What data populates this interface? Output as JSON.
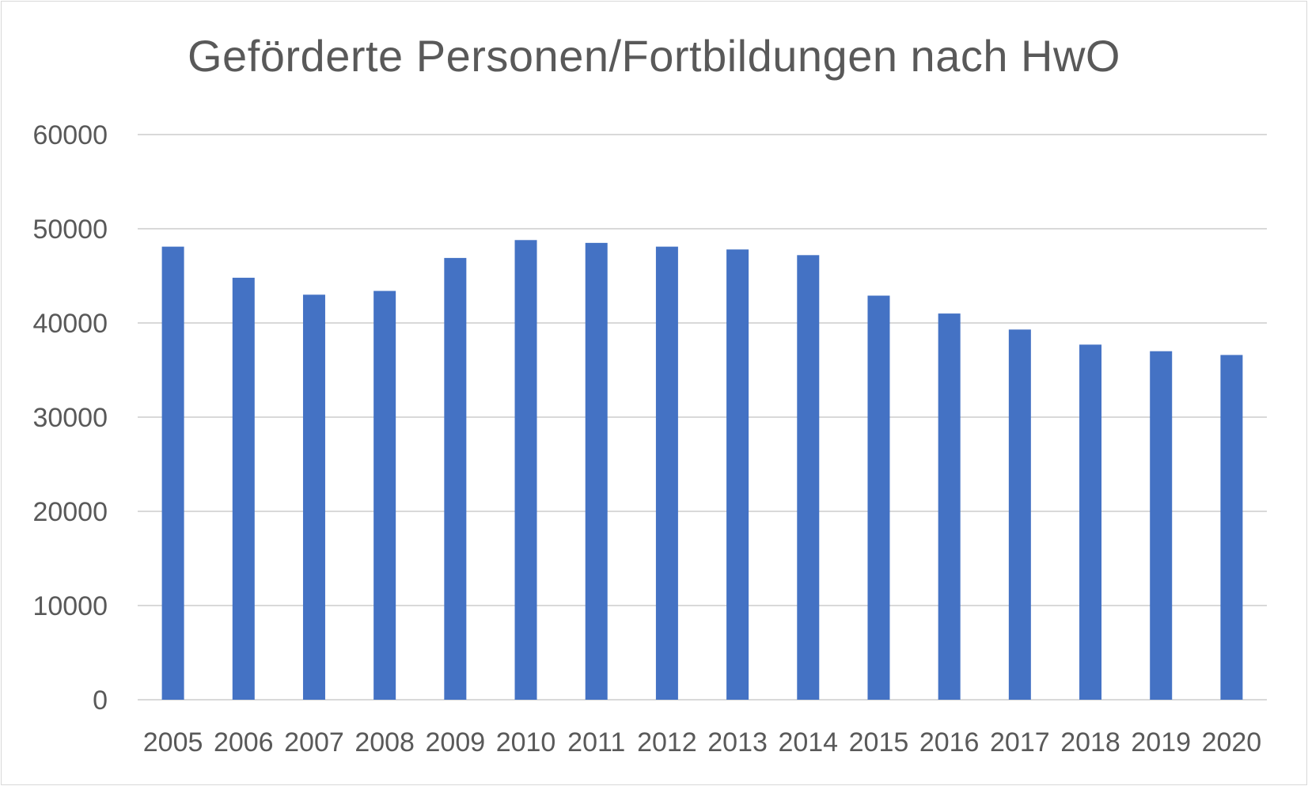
{
  "chart_data": {
    "type": "bar",
    "title": "Geförderte Personen/Fortbildungen nach HwO",
    "xlabel": "",
    "ylabel": "",
    "categories": [
      "2005",
      "2006",
      "2007",
      "2008",
      "2009",
      "2010",
      "2011",
      "2012",
      "2013",
      "2014",
      "2015",
      "2016",
      "2017",
      "2018",
      "2019",
      "2020"
    ],
    "values": [
      48100,
      44800,
      43000,
      43400,
      46900,
      48800,
      48500,
      48100,
      47800,
      47200,
      42900,
      41000,
      39300,
      37700,
      37000,
      36600
    ],
    "ylim": [
      0,
      60000
    ],
    "yticks": [
      "0",
      "10000",
      "20000",
      "30000",
      "40000",
      "50000",
      "60000"
    ],
    "grid": true,
    "legend": "none",
    "colors": {
      "bar": "#4472c4",
      "grid": "#d9d9d9",
      "text": "#595959"
    }
  }
}
